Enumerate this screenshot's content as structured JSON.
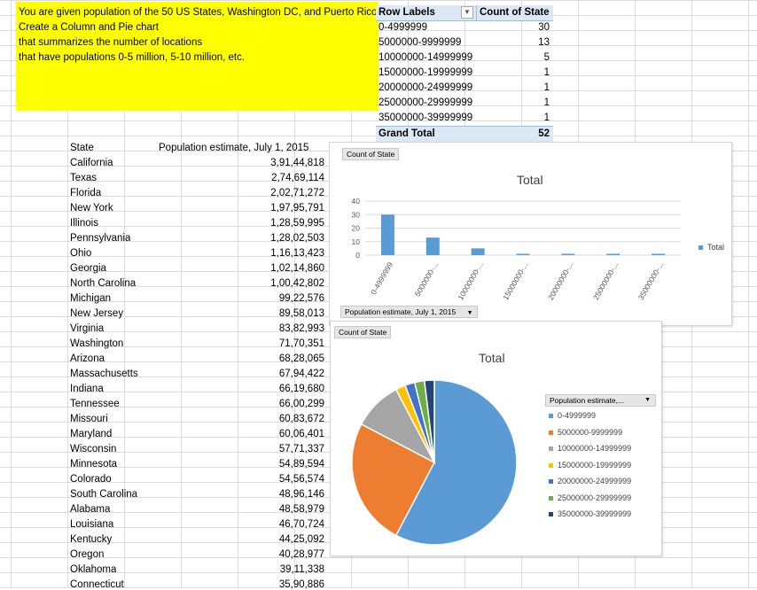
{
  "instructions": [
    "You are given population of the 50 US States, Washington DC, and Puerto Rico",
    "Create a Column and Pie chart",
    "that summarizes the number of locations",
    "that have populations 0-5 million, 5-10 million, etc."
  ],
  "pivot": {
    "row_labels_header": "Row Labels",
    "count_header": "Count of State",
    "rows": [
      {
        "label": "0-4999999",
        "count": "30"
      },
      {
        "label": "5000000-9999999",
        "count": "13"
      },
      {
        "label": "10000000-14999999",
        "count": "5"
      },
      {
        "label": "15000000-19999999",
        "count": "1"
      },
      {
        "label": "20000000-24999999",
        "count": "1"
      },
      {
        "label": "25000000-29999999",
        "count": "1"
      },
      {
        "label": "35000000-39999999",
        "count": "1"
      }
    ],
    "grand_total_label": "Grand Total",
    "grand_total": "52"
  },
  "state_table": {
    "header_state": "State",
    "header_pop": "Population estimate, July 1, 2015",
    "rows": [
      {
        "state": "California",
        "pop": "3,91,44,818"
      },
      {
        "state": "Texas",
        "pop": "2,74,69,114"
      },
      {
        "state": "Florida",
        "pop": "2,02,71,272"
      },
      {
        "state": "New York",
        "pop": "1,97,95,791"
      },
      {
        "state": "Illinois",
        "pop": "1,28,59,995"
      },
      {
        "state": "Pennsylvania",
        "pop": "1,28,02,503"
      },
      {
        "state": "Ohio",
        "pop": "1,16,13,423"
      },
      {
        "state": "Georgia",
        "pop": "1,02,14,860"
      },
      {
        "state": "North Carolina",
        "pop": "1,00,42,802"
      },
      {
        "state": "Michigan",
        "pop": "99,22,576"
      },
      {
        "state": "New Jersey",
        "pop": "89,58,013"
      },
      {
        "state": "Virginia",
        "pop": "83,82,993"
      },
      {
        "state": "Washington",
        "pop": "71,70,351"
      },
      {
        "state": "Arizona",
        "pop": "68,28,065"
      },
      {
        "state": "Massachusetts",
        "pop": "67,94,422"
      },
      {
        "state": "Indiana",
        "pop": "66,19,680"
      },
      {
        "state": "Tennessee",
        "pop": "66,00,299"
      },
      {
        "state": "Missouri",
        "pop": "60,83,672"
      },
      {
        "state": "Maryland",
        "pop": "60,06,401"
      },
      {
        "state": "Wisconsin",
        "pop": "57,71,337"
      },
      {
        "state": "Minnesota",
        "pop": "54,89,594"
      },
      {
        "state": "Colorado",
        "pop": "54,56,574"
      },
      {
        "state": "South Carolina",
        "pop": "48,96,146"
      },
      {
        "state": "Alabama",
        "pop": "48,58,979"
      },
      {
        "state": "Louisiana",
        "pop": "46,70,724"
      },
      {
        "state": "Kentucky",
        "pop": "44,25,092"
      },
      {
        "state": "Oregon",
        "pop": "40,28,977"
      },
      {
        "state": "Oklahoma",
        "pop": "39,11,338"
      },
      {
        "state": "Connecticut",
        "pop": "35,90,886"
      }
    ]
  },
  "column_chart": {
    "field_button": "Count of State",
    "axis_field_button": "Population estimate, July 1, 2015",
    "title": "Total",
    "legend": "Total",
    "color": "#5b9bd5"
  },
  "pie_chart": {
    "field_button": "Count of State",
    "legend_field_button": "Population estimate,...",
    "title": "Total",
    "colors": [
      "#5b9bd5",
      "#ed7d31",
      "#a5a5a5",
      "#ffc000",
      "#4472c4",
      "#70ad47",
      "#264478"
    ]
  },
  "chart_data": [
    {
      "type": "bar",
      "title": "Total",
      "categories": [
        "0-4999999",
        "5000000-...",
        "10000000-...",
        "15000000-...",
        "20000000-...",
        "25000000-...",
        "35000000-..."
      ],
      "series": [
        {
          "name": "Total",
          "values": [
            30,
            13,
            5,
            1,
            1,
            1,
            1
          ]
        }
      ],
      "xlabel": "",
      "ylabel": "",
      "ylim": [
        0,
        40
      ],
      "yticks": [
        0,
        10,
        20,
        30,
        40
      ],
      "legend": "right",
      "grid": true
    },
    {
      "type": "pie",
      "title": "Total",
      "categories": [
        "0-4999999",
        "5000000-9999999",
        "10000000-14999999",
        "15000000-19999999",
        "20000000-24999999",
        "25000000-29999999",
        "35000000-39999999"
      ],
      "values": [
        30,
        13,
        5,
        1,
        1,
        1,
        1
      ],
      "legend": "right"
    }
  ]
}
